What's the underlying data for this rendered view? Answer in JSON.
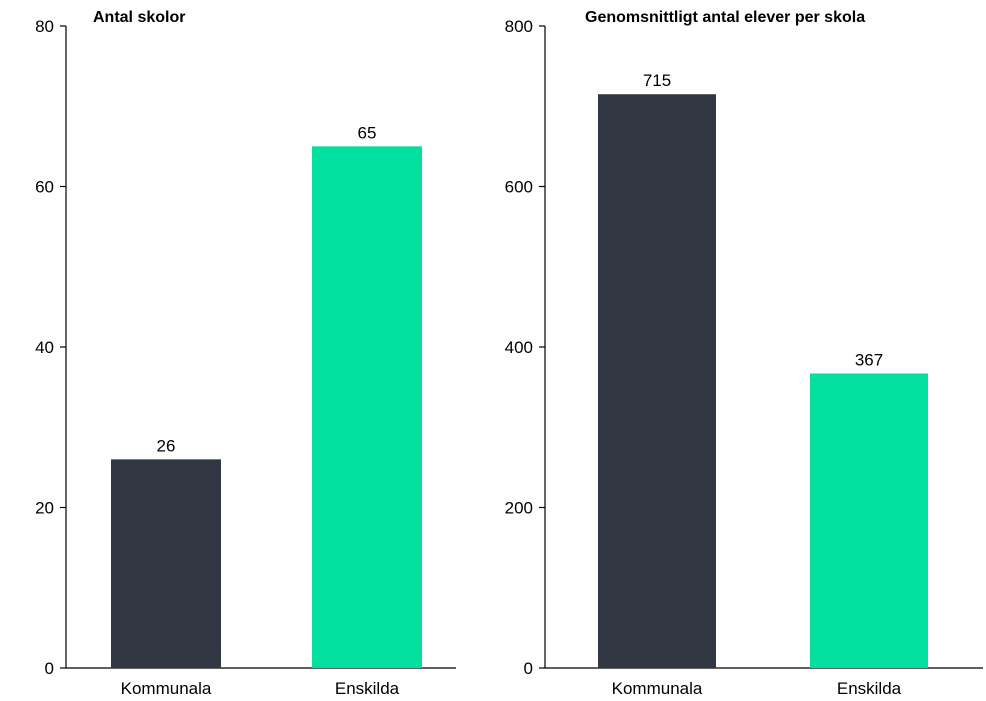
{
  "chart_data": [
    {
      "type": "bar",
      "title": "Antal skolor",
      "categories": [
        "Kommunala",
        "Enskilda"
      ],
      "values": [
        26,
        65
      ],
      "ylim": [
        0,
        80
      ],
      "yticks": [
        0,
        20,
        40,
        60,
        80
      ],
      "colors": [
        "#323843",
        "#02DF9F"
      ],
      "grid": false
    },
    {
      "type": "bar",
      "title": "Genomsnittligt antal elever per skola",
      "categories": [
        "Kommunala",
        "Enskilda"
      ],
      "values": [
        715,
        367
      ],
      "ylim": [
        0,
        800
      ],
      "yticks": [
        0,
        200,
        400,
        600,
        800
      ],
      "colors": [
        "#323843",
        "#02DF9F"
      ],
      "grid": false
    }
  ]
}
